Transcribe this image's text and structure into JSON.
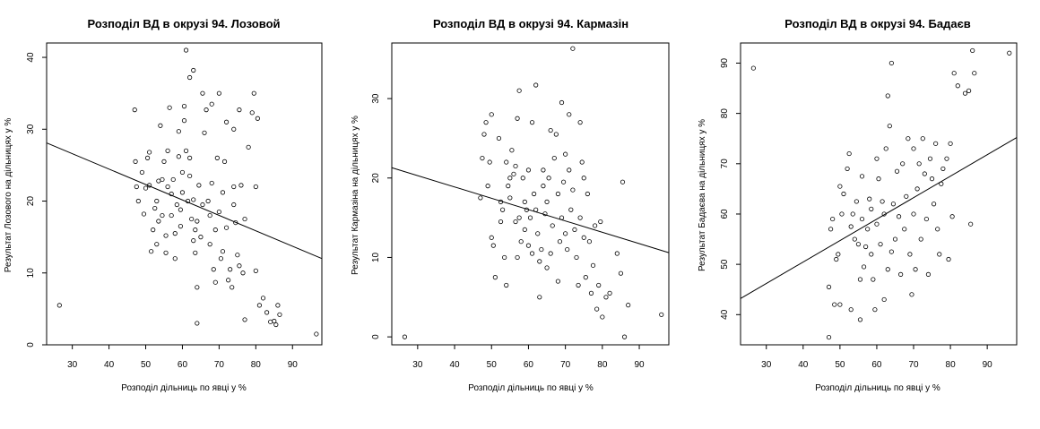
{
  "chart_data": [
    {
      "type": "scatter",
      "title": "Розподіл ВД в окрузі 94. Лозовой",
      "xlabel": "Розподіл дільниць по явці у %",
      "ylabel": "Результат Лозового на дільницях у %",
      "xlim": [
        23,
        98
      ],
      "ylim": [
        0,
        42
      ],
      "xticks": [
        30,
        40,
        50,
        60,
        70,
        80,
        90
      ],
      "yticks": [
        0,
        10,
        20,
        30,
        40
      ],
      "grid": false,
      "trend_line": {
        "x": [
          23,
          98
        ],
        "y": [
          28.1,
          12.0
        ]
      },
      "points": [
        [
          26.5,
          5.5
        ],
        [
          47,
          32.7
        ],
        [
          47.2,
          25.5
        ],
        [
          47.5,
          22
        ],
        [
          48,
          20
        ],
        [
          49,
          24
        ],
        [
          49.5,
          18.2
        ],
        [
          50,
          21.8
        ],
        [
          50.5,
          26
        ],
        [
          51,
          26.8
        ],
        [
          51,
          22.2
        ],
        [
          51.5,
          13
        ],
        [
          52,
          16
        ],
        [
          52.5,
          19
        ],
        [
          53,
          14
        ],
        [
          53.5,
          17.2
        ],
        [
          53,
          20
        ],
        [
          53.5,
          22.8
        ],
        [
          54,
          30.5
        ],
        [
          54.5,
          23
        ],
        [
          54.5,
          18
        ],
        [
          55,
          25.5
        ],
        [
          55.5,
          12.8
        ],
        [
          55.5,
          15.2
        ],
        [
          56,
          22
        ],
        [
          56,
          27
        ],
        [
          56.5,
          33
        ],
        [
          57,
          21
        ],
        [
          57,
          18
        ],
        [
          57.5,
          23
        ],
        [
          58,
          12
        ],
        [
          58,
          15.5
        ],
        [
          58.5,
          19.5
        ],
        [
          59,
          26.2
        ],
        [
          59,
          29.7
        ],
        [
          59.5,
          16.5
        ],
        [
          59.5,
          18.8
        ],
        [
          60,
          21.2
        ],
        [
          60,
          24
        ],
        [
          60.5,
          31.2
        ],
        [
          60.5,
          33.2
        ],
        [
          61,
          41
        ],
        [
          61,
          27
        ],
        [
          61.5,
          20
        ],
        [
          62,
          37.2
        ],
        [
          62,
          26
        ],
        [
          62,
          23.5
        ],
        [
          62.5,
          17.5
        ],
        [
          63,
          14.5
        ],
        [
          63,
          20.2
        ],
        [
          63,
          38.2
        ],
        [
          63.5,
          12.8
        ],
        [
          63.5,
          16
        ],
        [
          64,
          3
        ],
        [
          64,
          8
        ],
        [
          64,
          17.2
        ],
        [
          64.5,
          22.2
        ],
        [
          65,
          15
        ],
        [
          65.5,
          35
        ],
        [
          65.5,
          19.5
        ],
        [
          66,
          29.5
        ],
        [
          66.5,
          32.7
        ],
        [
          67,
          20
        ],
        [
          67.5,
          14
        ],
        [
          67.5,
          18
        ],
        [
          68,
          22.5
        ],
        [
          68,
          33.5
        ],
        [
          68.5,
          10.5
        ],
        [
          69,
          8.7
        ],
        [
          69,
          16
        ],
        [
          69.5,
          26
        ],
        [
          70,
          35
        ],
        [
          70,
          18.5
        ],
        [
          70.5,
          12
        ],
        [
          71,
          21.2
        ],
        [
          71,
          13
        ],
        [
          71.5,
          25.5
        ],
        [
          72,
          31
        ],
        [
          72,
          16.3
        ],
        [
          72.5,
          9
        ],
        [
          73,
          10.5
        ],
        [
          73.5,
          8
        ],
        [
          74,
          30
        ],
        [
          74,
          22
        ],
        [
          74,
          19.5
        ],
        [
          74.5,
          17
        ],
        [
          75,
          12.5
        ],
        [
          75.5,
          32.7
        ],
        [
          75.5,
          11
        ],
        [
          76,
          22.2
        ],
        [
          76.5,
          10
        ],
        [
          77,
          3.5
        ],
        [
          77,
          17.5
        ],
        [
          78,
          27.5
        ],
        [
          79,
          32.3
        ],
        [
          79.5,
          35
        ],
        [
          80,
          22
        ],
        [
          80,
          10.3
        ],
        [
          80.5,
          31.5
        ],
        [
          81,
          5.5
        ],
        [
          82,
          6.5
        ],
        [
          83,
          4.5
        ],
        [
          84,
          3.2
        ],
        [
          85,
          3.3
        ],
        [
          85.5,
          2.8
        ],
        [
          86,
          5.5
        ],
        [
          86.5,
          4.2
        ],
        [
          96.5,
          1.5
        ]
      ]
    },
    {
      "type": "scatter",
      "title": "Розподіл ВД в окрузі 94. Кармазін",
      "xlabel": "Розподіл дільниць по явці у %",
      "ylabel": "Результат Кармазіна на дільницях у %",
      "xlim": [
        23,
        98
      ],
      "ylim": [
        -1,
        37
      ],
      "xticks": [
        30,
        40,
        50,
        60,
        70,
        80,
        90
      ],
      "yticks": [
        0,
        10,
        20,
        30
      ],
      "grid": false,
      "trend_line": {
        "x": [
          23,
          98
        ],
        "y": [
          21.3,
          10.6
        ]
      },
      "points": [
        [
          26.5,
          0
        ],
        [
          47,
          17.5
        ],
        [
          47.5,
          22.5
        ],
        [
          48,
          25.5
        ],
        [
          48.5,
          27
        ],
        [
          49,
          19
        ],
        [
          49.5,
          22
        ],
        [
          50,
          28
        ],
        [
          50,
          12.5
        ],
        [
          50.5,
          11.5
        ],
        [
          51,
          7.5
        ],
        [
          52,
          25
        ],
        [
          52.5,
          14.5
        ],
        [
          52.5,
          17
        ],
        [
          53,
          16
        ],
        [
          53.5,
          10
        ],
        [
          54,
          6.5
        ],
        [
          54,
          22
        ],
        [
          54.5,
          19
        ],
        [
          55,
          17.5
        ],
        [
          55,
          20
        ],
        [
          55.5,
          23.5
        ],
        [
          56,
          20.5
        ],
        [
          56.5,
          14.5
        ],
        [
          56.5,
          21.5
        ],
        [
          57,
          27.5
        ],
        [
          57,
          10
        ],
        [
          57.5,
          31
        ],
        [
          57.5,
          15
        ],
        [
          58,
          12
        ],
        [
          58.5,
          20
        ],
        [
          59,
          17
        ],
        [
          59,
          13.5
        ],
        [
          59.5,
          16
        ],
        [
          60,
          11.5
        ],
        [
          60,
          21
        ],
        [
          60.5,
          15
        ],
        [
          61,
          27
        ],
        [
          61,
          10.5
        ],
        [
          61.5,
          18
        ],
        [
          62,
          31.7
        ],
        [
          62,
          16
        ],
        [
          62.5,
          13
        ],
        [
          63,
          5
        ],
        [
          63,
          9.5
        ],
        [
          63.5,
          11
        ],
        [
          64,
          21
        ],
        [
          64,
          19
        ],
        [
          64.5,
          15.5
        ],
        [
          65,
          8.7
        ],
        [
          65,
          17
        ],
        [
          65.5,
          20
        ],
        [
          66,
          26
        ],
        [
          66,
          10.5
        ],
        [
          66.5,
          14
        ],
        [
          67,
          22.5
        ],
        [
          67.5,
          25.5
        ],
        [
          68,
          7
        ],
        [
          68,
          18
        ],
        [
          68.5,
          12
        ],
        [
          69,
          29.5
        ],
        [
          69,
          15
        ],
        [
          69.5,
          19.5
        ],
        [
          70,
          23
        ],
        [
          70,
          13
        ],
        [
          70.5,
          11
        ],
        [
          71,
          28
        ],
        [
          71,
          21
        ],
        [
          71.5,
          16
        ],
        [
          72,
          36.3
        ],
        [
          72,
          18.5
        ],
        [
          72.5,
          13.5
        ],
        [
          73,
          10
        ],
        [
          73.5,
          6.5
        ],
        [
          74,
          27
        ],
        [
          74,
          15
        ],
        [
          74.5,
          22
        ],
        [
          75,
          20
        ],
        [
          75,
          12.5
        ],
        [
          75.5,
          7.5
        ],
        [
          76,
          18
        ],
        [
          76.5,
          12
        ],
        [
          77,
          5.5
        ],
        [
          77.5,
          9
        ],
        [
          78,
          14
        ],
        [
          78.5,
          3.5
        ],
        [
          79,
          6.5
        ],
        [
          79.5,
          14.5
        ],
        [
          80,
          2.5
        ],
        [
          81,
          5
        ],
        [
          82,
          5.5
        ],
        [
          84,
          10.5
        ],
        [
          85,
          8
        ],
        [
          85.5,
          19.5
        ],
        [
          86,
          0
        ],
        [
          87,
          4
        ],
        [
          96,
          2.8
        ]
      ]
    },
    {
      "type": "scatter",
      "title": "Розподіл ВД в окрузі 94. Бадаєв",
      "xlabel": "Розподіл дільниць по явці у %",
      "ylabel": "Результат Бадаєва на дільницях у %",
      "xlim": [
        23,
        98
      ],
      "ylim": [
        34,
        94
      ],
      "xticks": [
        30,
        40,
        50,
        60,
        70,
        80,
        90
      ],
      "yticks": [
        40,
        50,
        60,
        70,
        80,
        90
      ],
      "grid": false,
      "trend_line": {
        "x": [
          23,
          98
        ],
        "y": [
          43.2,
          75.2
        ]
      },
      "points": [
        [
          26.5,
          89
        ],
        [
          47,
          35.5
        ],
        [
          47,
          45.5
        ],
        [
          47.5,
          57
        ],
        [
          48,
          59
        ],
        [
          48.5,
          42
        ],
        [
          49,
          51
        ],
        [
          49.5,
          52
        ],
        [
          50,
          42
        ],
        [
          50,
          65.5
        ],
        [
          50.5,
          60
        ],
        [
          51,
          64
        ],
        [
          52,
          69
        ],
        [
          52.5,
          72
        ],
        [
          53,
          41
        ],
        [
          53,
          57.5
        ],
        [
          53.5,
          60
        ],
        [
          54,
          55
        ],
        [
          54.5,
          62.5
        ],
        [
          55,
          54
        ],
        [
          55.5,
          39
        ],
        [
          55.5,
          47
        ],
        [
          56,
          59
        ],
        [
          56,
          67.5
        ],
        [
          56.5,
          49.5
        ],
        [
          57,
          53.5
        ],
        [
          57.5,
          57
        ],
        [
          58,
          63
        ],
        [
          58.5,
          61
        ],
        [
          58.5,
          52
        ],
        [
          59,
          47
        ],
        [
          59.5,
          41
        ],
        [
          60,
          58
        ],
        [
          60,
          71
        ],
        [
          60.5,
          67
        ],
        [
          61,
          54
        ],
        [
          61.5,
          62.5
        ],
        [
          62,
          43
        ],
        [
          62,
          60
        ],
        [
          62.5,
          73
        ],
        [
          63,
          49
        ],
        [
          63,
          83.5
        ],
        [
          63.5,
          77.5
        ],
        [
          64,
          90
        ],
        [
          64,
          52.5
        ],
        [
          64.5,
          62
        ],
        [
          65,
          55
        ],
        [
          65.5,
          68.5
        ],
        [
          66,
          59.5
        ],
        [
          66.5,
          48
        ],
        [
          67,
          70
        ],
        [
          67.5,
          57
        ],
        [
          68,
          63.5
        ],
        [
          68.5,
          75
        ],
        [
          69,
          52
        ],
        [
          69.5,
          44
        ],
        [
          70,
          60
        ],
        [
          70,
          73
        ],
        [
          70.5,
          49
        ],
        [
          71,
          65
        ],
        [
          71.5,
          70
        ],
        [
          72,
          55
        ],
        [
          72.5,
          75
        ],
        [
          73,
          68
        ],
        [
          73.5,
          59
        ],
        [
          74,
          48
        ],
        [
          74.5,
          71
        ],
        [
          75,
          67
        ],
        [
          75.5,
          62
        ],
        [
          76,
          74
        ],
        [
          76.5,
          57
        ],
        [
          77,
          52
        ],
        [
          77.5,
          66
        ],
        [
          78,
          69
        ],
        [
          79,
          71
        ],
        [
          79.5,
          51
        ],
        [
          80,
          74
        ],
        [
          80.5,
          59.5
        ],
        [
          81,
          88
        ],
        [
          82,
          85.5
        ],
        [
          84,
          84
        ],
        [
          85,
          84.5
        ],
        [
          85.5,
          58
        ],
        [
          86,
          92.5
        ],
        [
          86.5,
          88
        ],
        [
          96,
          92
        ]
      ]
    }
  ]
}
